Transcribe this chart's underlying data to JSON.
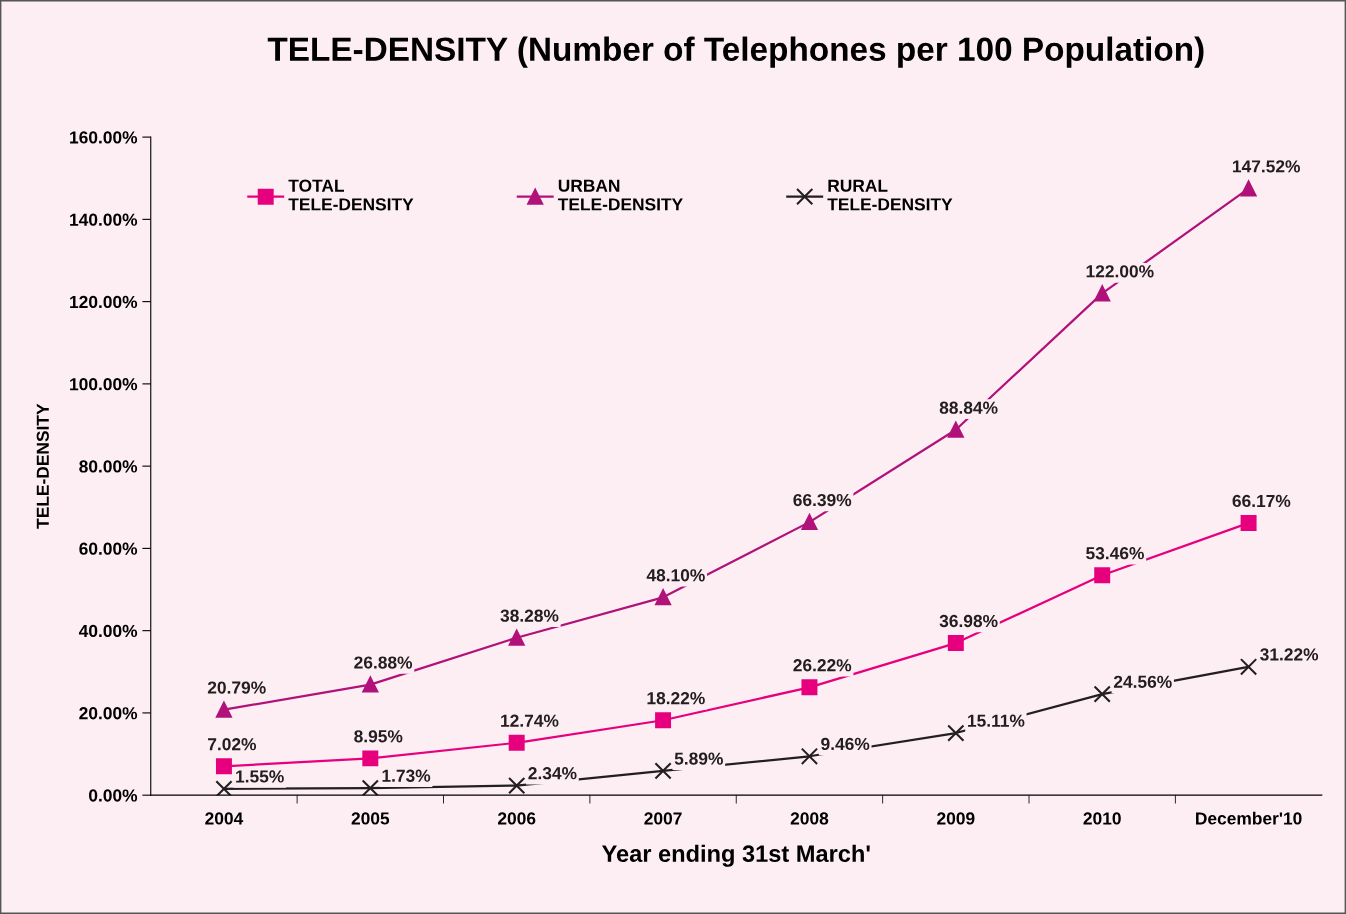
{
  "chart_data": {
    "type": "line",
    "title": "TELE-DENSITY (Number of Telephones per 100 Population)",
    "xlabel": "Year ending 31st March'",
    "ylabel": "TELE-DENSITY",
    "categories": [
      "2004",
      "2005",
      "2006",
      "2007",
      "2008",
      "2009",
      "2010",
      "December'10"
    ],
    "series": [
      {
        "name": "TOTAL\nTELE-DENSITY",
        "color": "#e6007e",
        "marker": "square",
        "values": [
          7.02,
          8.95,
          12.74,
          18.22,
          26.22,
          36.98,
          53.46,
          66.17
        ],
        "value_labels": [
          "7.02%",
          "8.95%",
          "12.74%",
          "18.22%",
          "26.22%",
          "36.98%",
          "53.46%",
          "66.17%"
        ]
      },
      {
        "name": "URBAN\nTELE-DENSITY",
        "color": "#b0127a",
        "marker": "triangle",
        "values": [
          20.79,
          26.88,
          38.28,
          48.1,
          66.39,
          88.84,
          122.0,
          147.52
        ],
        "value_labels": [
          "20.79%",
          "26.88%",
          "38.28%",
          "48.10%",
          "66.39%",
          "88.84%",
          "122.00%",
          "147.52%"
        ]
      },
      {
        "name": "RURAL\nTELE-DENSITY",
        "color": "#231f20",
        "marker": "cross",
        "values": [
          1.55,
          1.73,
          2.34,
          5.89,
          9.46,
          15.11,
          24.56,
          31.22
        ],
        "value_labels": [
          "1.55%",
          "1.73%",
          "2.34%",
          "5.89%",
          "9.46%",
          "15.11%",
          "24.56%",
          "31.22%"
        ]
      }
    ],
    "ylim": [
      0,
      160
    ],
    "yticks": [
      {
        "value": 0,
        "label": "0.00%"
      },
      {
        "value": 20,
        "label": "20.00%"
      },
      {
        "value": 40,
        "label": "40.00%"
      },
      {
        "value": 60,
        "label": "60.00%"
      },
      {
        "value": 80,
        "label": "80.00%"
      },
      {
        "value": 100,
        "label": "100.00%"
      },
      {
        "value": 120,
        "label": "120.00%"
      },
      {
        "value": 140,
        "label": "140.00%"
      },
      {
        "value": 160,
        "label": "160.00%"
      }
    ],
    "grid": false,
    "legend": "top left",
    "line_style": "solid"
  }
}
